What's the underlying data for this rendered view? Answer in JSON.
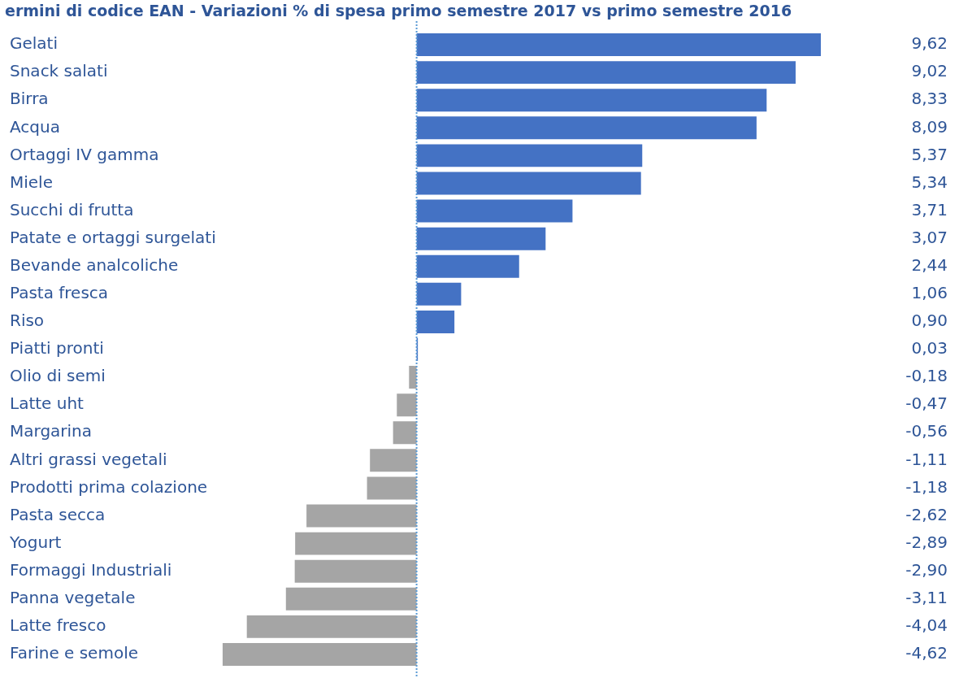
{
  "chart_data": {
    "type": "bar",
    "orientation": "horizontal",
    "title": "ermini di codice EAN - Variazioni % di spesa primo semestre 2017 vs primo semestre 2016",
    "categories": [
      "Gelati",
      "Snack salati",
      "Birra",
      "Acqua",
      "Ortaggi IV gamma",
      "Miele",
      "Succhi di frutta",
      "Patate e ortaggi surgelati",
      "Bevande analcoliche",
      "Pasta fresca",
      "Riso",
      "Piatti pronti",
      "Olio di semi",
      "Latte uht",
      "Margarina",
      "Altri grassi vegetali",
      "Prodotti prima colazione",
      "Pasta secca",
      "Yogurt",
      "Formaggi Industriali",
      "Panna vegetale",
      "Latte fresco",
      "Farine e semole"
    ],
    "values": [
      9.62,
      9.02,
      8.33,
      8.09,
      5.37,
      5.34,
      3.71,
      3.07,
      2.44,
      1.06,
      0.9,
      0.03,
      -0.18,
      -0.47,
      -0.56,
      -1.11,
      -1.18,
      -2.62,
      -2.89,
      -2.9,
      -3.11,
      -4.04,
      -4.62
    ],
    "value_labels": [
      "9,62",
      "9,02",
      "8,33",
      "8,09",
      "5,37",
      "5,34",
      "3,71",
      "3,07",
      "2,44",
      "1,06",
      "0,90",
      "0,03",
      "-0,18",
      "-0,47",
      "-0,56",
      "-1,11",
      "-1,18",
      "-2,62",
      "-2,89",
      "-2,90",
      "-3,11",
      "-4,04",
      "-4,62"
    ],
    "colors": [
      "#4472c4",
      "#4472c4",
      "#4472c4",
      "#4472c4",
      "#4472c4",
      "#4472c4",
      "#4472c4",
      "#4472c4",
      "#4472c4",
      "#4472c4",
      "#4472c4",
      "#4472c4",
      "#a5a5a5",
      "#a5a5a5",
      "#a5a5a5",
      "#a5a5a5",
      "#a5a5a5",
      "#a5a5a5",
      "#a5a5a5",
      "#a5a5a5",
      "#a5a5a5",
      "#a5a5a5",
      "#a5a5a5"
    ],
    "ref_lines": [
      {
        "axis": "x",
        "value": 0,
        "color": "#5b9bd5",
        "line_style": "dotted"
      }
    ],
    "tick_labels": "y",
    "legend": false
  }
}
